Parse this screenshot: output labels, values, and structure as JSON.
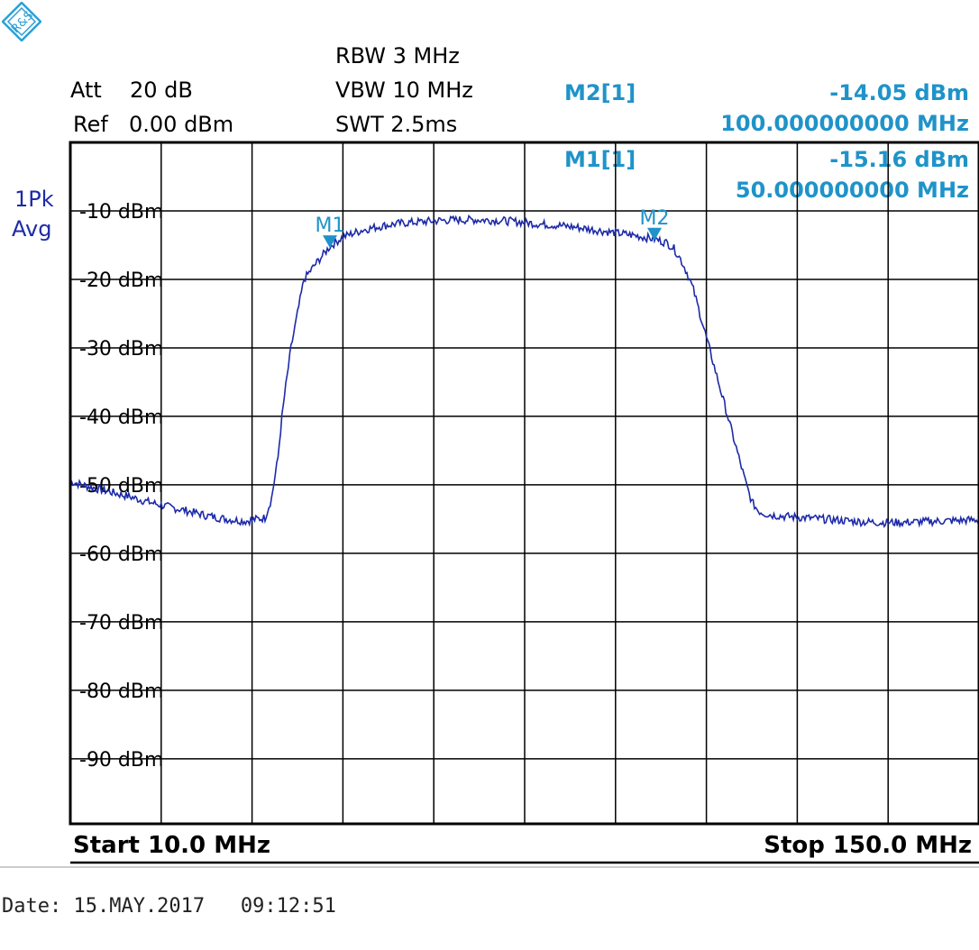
{
  "header": {
    "att_label": "Att",
    "att_value": "20 dB",
    "ref_label": "Ref",
    "ref_value": "0.00 dBm",
    "rbw": "RBW 3 MHz",
    "vbw": "VBW 10 MHz",
    "swt": "SWT 2.5ms"
  },
  "trace_mode": {
    "line1": "1Pk",
    "line2": "Avg"
  },
  "markers": [
    {
      "id": "M2[1]",
      "level_text": "-14.05 dBm",
      "freq_text": "100.000000000 MHz",
      "label": "M2",
      "freq_mhz": 100.0,
      "level_dbm": -14.05
    },
    {
      "id": "M1[1]",
      "level_text": "-15.16 dBm",
      "freq_text": "50.000000000 MHz",
      "label": "M1",
      "freq_mhz": 50.0,
      "level_dbm": -15.16
    }
  ],
  "footer": {
    "start": "Start 10.0 MHz",
    "stop": "Stop 150.0 MHz"
  },
  "date_line": "Date: 15.MAY.2017   09:12:51",
  "colors": {
    "trace": "#1d2aa8",
    "marker": "#1f93c9",
    "grid": "#000000"
  },
  "chart_data": {
    "type": "line",
    "title": "",
    "xlabel": "",
    "ylabel": "",
    "xlim": [
      10,
      150
    ],
    "ylim": [
      -99.5,
      0
    ],
    "x_divisions": 10,
    "grid": true,
    "y_tick_labels": [
      "-10 dBm",
      "-20 dBm",
      "-30 dBm",
      "-40 dBm",
      "-50 dBm",
      "-60 dBm",
      "-70 dBm",
      "-80 dBm",
      "-90 dBm"
    ],
    "y_tick_values": [
      -10,
      -20,
      -30,
      -40,
      -50,
      -60,
      -70,
      -80,
      -90
    ],
    "series": [
      {
        "x": [
          10,
          13,
          16,
          19,
          22,
          25,
          28,
          31,
          34,
          37,
          40,
          41,
          42,
          42.5,
          43,
          44,
          45,
          46,
          48,
          50,
          52,
          55,
          58,
          61,
          64,
          67,
          70,
          73,
          76,
          79,
          82,
          85,
          88,
          91,
          94,
          97,
          100,
          102,
          103,
          104,
          105,
          106,
          107,
          108,
          109,
          110,
          111,
          112,
          113,
          114,
          115,
          116,
          117,
          118,
          120,
          123,
          126,
          129,
          132,
          135,
          138,
          141,
          144,
          147,
          150
        ],
        "y": [
          -49.5,
          -50.3,
          -51,
          -51.7,
          -52.5,
          -53.2,
          -53.8,
          -54.5,
          -55,
          -55.3,
          -54.8,
          -52,
          -46,
          -41,
          -37,
          -30,
          -25,
          -20,
          -17.5,
          -15.2,
          -13.8,
          -12.8,
          -12.2,
          -11.8,
          -11.6,
          -11.4,
          -11.3,
          -11.3,
          -11.4,
          -11.6,
          -11.9,
          -12.1,
          -12.4,
          -12.8,
          -13.2,
          -13.6,
          -14.1,
          -14.7,
          -15.5,
          -17,
          -19,
          -21.5,
          -25,
          -28.5,
          -32,
          -35.5,
          -39,
          -42.5,
          -46,
          -49.5,
          -52.5,
          -53.8,
          -54.2,
          -54.4,
          -54.6,
          -54.8,
          -55,
          -55.2,
          -55.4,
          -55.5,
          -55.5,
          -55.4,
          -55.3,
          -55.2,
          -55.1
        ]
      }
    ]
  }
}
